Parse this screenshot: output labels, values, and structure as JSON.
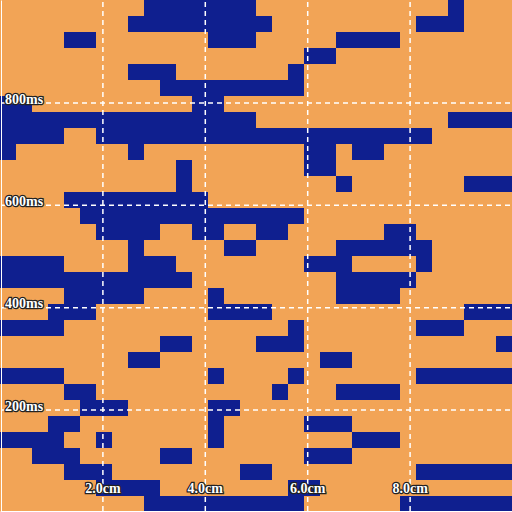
{
  "chart_data": {
    "type": "heatmap",
    "xlim": [
      0,
      10
    ],
    "ylim": [
      0,
      1000
    ],
    "xticks": [
      {
        "value": 2,
        "label": "2.0cm"
      },
      {
        "value": 4,
        "label": "4.0cm"
      },
      {
        "value": 6,
        "label": "6.0cm"
      },
      {
        "value": 8,
        "label": "8.0cm"
      }
    ],
    "yticks": [
      {
        "value": 200,
        "label": "200ms"
      },
      {
        "value": 400,
        "label": "400ms"
      },
      {
        "value": 600,
        "label": "600ms"
      },
      {
        "value": 800,
        "label": "800ms"
      }
    ],
    "grid": true,
    "x": [
      0.15625,
      0.46875,
      0.78125,
      1.09375,
      1.40625,
      1.71875,
      2.03125,
      2.34375,
      2.65625,
      2.96875,
      3.28125,
      3.59375,
      3.90625,
      4.21875,
      4.53125,
      4.84375,
      5.15625,
      5.46875,
      5.78125,
      6.09375,
      6.40625,
      6.71875,
      7.03125,
      7.34375,
      7.65625,
      7.96875,
      8.28125,
      8.59375,
      8.90625,
      9.21875,
      9.53125,
      9.84375
    ],
    "y": [
      15.625,
      46.875,
      78.125,
      109.375,
      140.625,
      171.875,
      203.125,
      234.375,
      265.625,
      296.875,
      328.125,
      359.375,
      390.625,
      421.875,
      453.125,
      484.375,
      515.625,
      546.875,
      578.125,
      609.375,
      640.625,
      671.875,
      703.125,
      734.375,
      765.625,
      796.875,
      828.125,
      859.375,
      890.625,
      921.875,
      953.125,
      984.375
    ],
    "z": [
      [
        1,
        1,
        1,
        1,
        1,
        1,
        1,
        1,
        1,
        0,
        0,
        0,
        0,
        0,
        0,
        0,
        0,
        0,
        0,
        1,
        1,
        1,
        1,
        1,
        1,
        0,
        0,
        0,
        0,
        0,
        0,
        0
      ],
      [
        1,
        1,
        1,
        1,
        1,
        1,
        0,
        0,
        0,
        0,
        1,
        1,
        1,
        1,
        1,
        1,
        1,
        1,
        0,
        0,
        1,
        1,
        1,
        1,
        1,
        1,
        1,
        1,
        1,
        1,
        1,
        1
      ],
      [
        1,
        1,
        1,
        1,
        0,
        0,
        0,
        1,
        1,
        1,
        1,
        1,
        1,
        1,
        1,
        0,
        0,
        1,
        1,
        1,
        1,
        1,
        1,
        1,
        1,
        1,
        0,
        0,
        0,
        0,
        0,
        0
      ],
      [
        1,
        1,
        0,
        0,
        0,
        1,
        1,
        1,
        1,
        1,
        0,
        0,
        1,
        1,
        1,
        1,
        1,
        1,
        1,
        0,
        0,
        0,
        1,
        1,
        1,
        1,
        1,
        1,
        1,
        1,
        1,
        1
      ],
      [
        0,
        0,
        0,
        0,
        1,
        1,
        0,
        1,
        1,
        1,
        1,
        1,
        1,
        0,
        1,
        1,
        1,
        1,
        1,
        1,
        1,
        1,
        0,
        0,
        0,
        1,
        1,
        1,
        1,
        1,
        1,
        1
      ],
      [
        1,
        1,
        1,
        0,
        0,
        1,
        1,
        1,
        1,
        1,
        1,
        1,
        1,
        0,
        1,
        1,
        1,
        1,
        1,
        0,
        0,
        0,
        1,
        1,
        1,
        1,
        1,
        1,
        1,
        1,
        1,
        1
      ],
      [
        1,
        1,
        1,
        1,
        1,
        0,
        0,
        0,
        1,
        1,
        1,
        1,
        1,
        0,
        0,
        1,
        1,
        1,
        1,
        1,
        1,
        1,
        1,
        1,
        1,
        1,
        1,
        1,
        1,
        1,
        1,
        1
      ],
      [
        1,
        1,
        1,
        1,
        0,
        0,
        1,
        1,
        1,
        1,
        1,
        1,
        1,
        1,
        1,
        1,
        1,
        0,
        1,
        1,
        1,
        0,
        0,
        0,
        0,
        1,
        1,
        1,
        1,
        1,
        1,
        1
      ],
      [
        0,
        0,
        0,
        0,
        1,
        1,
        1,
        1,
        1,
        1,
        1,
        1,
        1,
        0,
        1,
        1,
        1,
        1,
        0,
        1,
        1,
        1,
        1,
        1,
        1,
        1,
        0,
        0,
        0,
        0,
        0,
        0
      ],
      [
        1,
        1,
        1,
        1,
        1,
        1,
        1,
        1,
        0,
        0,
        1,
        1,
        1,
        1,
        1,
        1,
        1,
        1,
        1,
        1,
        0,
        0,
        1,
        1,
        1,
        1,
        1,
        1,
        1,
        1,
        1,
        1
      ],
      [
        1,
        1,
        1,
        1,
        1,
        1,
        1,
        1,
        1,
        1,
        0,
        0,
        1,
        1,
        1,
        1,
        0,
        0,
        0,
        1,
        1,
        1,
        1,
        1,
        1,
        1,
        1,
        1,
        1,
        1,
        1,
        0
      ],
      [
        0,
        0,
        0,
        0,
        1,
        1,
        1,
        1,
        1,
        1,
        1,
        1,
        1,
        1,
        1,
        1,
        1,
        1,
        0,
        1,
        1,
        1,
        1,
        1,
        1,
        1,
        0,
        0,
        0,
        1,
        1,
        1
      ],
      [
        1,
        1,
        1,
        0,
        0,
        0,
        1,
        1,
        1,
        1,
        1,
        1,
        1,
        0,
        0,
        0,
        0,
        1,
        1,
        1,
        1,
        1,
        1,
        1,
        1,
        1,
        1,
        1,
        1,
        0,
        0,
        0
      ],
      [
        1,
        1,
        1,
        1,
        0,
        0,
        0,
        0,
        0,
        1,
        1,
        1,
        1,
        0,
        1,
        1,
        1,
        1,
        1,
        1,
        1,
        0,
        0,
        0,
        0,
        1,
        1,
        1,
        1,
        1,
        1,
        1
      ],
      [
        0,
        0,
        0,
        0,
        0,
        0,
        0,
        0,
        0,
        0,
        0,
        0,
        1,
        1,
        1,
        1,
        1,
        1,
        1,
        1,
        1,
        0,
        0,
        0,
        0,
        0,
        1,
        1,
        1,
        1,
        1,
        1
      ],
      [
        0,
        0,
        0,
        0,
        1,
        1,
        1,
        1,
        0,
        0,
        0,
        1,
        1,
        1,
        1,
        1,
        1,
        1,
        1,
        0,
        0,
        0,
        1,
        1,
        1,
        1,
        0,
        1,
        1,
        1,
        1,
        1
      ],
      [
        1,
        1,
        1,
        1,
        1,
        1,
        1,
        1,
        0,
        1,
        1,
        1,
        1,
        1,
        0,
        0,
        1,
        1,
        1,
        1,
        1,
        0,
        0,
        0,
        0,
        0,
        0,
        1,
        1,
        1,
        1,
        1
      ],
      [
        1,
        1,
        1,
        1,
        1,
        1,
        0,
        0,
        0,
        0,
        1,
        1,
        0,
        0,
        1,
        1,
        0,
        0,
        1,
        1,
        1,
        1,
        1,
        1,
        0,
        0,
        1,
        1,
        1,
        1,
        1,
        1
      ],
      [
        1,
        1,
        1,
        1,
        1,
        0,
        0,
        0,
        0,
        0,
        0,
        0,
        0,
        0,
        0,
        0,
        0,
        0,
        0,
        1,
        1,
        1,
        1,
        1,
        1,
        1,
        1,
        1,
        1,
        1,
        1,
        1
      ],
      [
        1,
        1,
        1,
        1,
        0,
        0,
        0,
        0,
        0,
        0,
        0,
        0,
        0,
        1,
        1,
        1,
        1,
        1,
        1,
        1,
        1,
        1,
        1,
        1,
        1,
        1,
        1,
        1,
        1,
        1,
        1,
        1
      ],
      [
        1,
        1,
        1,
        1,
        1,
        1,
        1,
        1,
        1,
        1,
        1,
        0,
        1,
        1,
        1,
        1,
        1,
        1,
        1,
        1,
        1,
        0,
        1,
        1,
        1,
        1,
        1,
        1,
        1,
        0,
        0,
        0
      ],
      [
        1,
        1,
        1,
        1,
        1,
        1,
        1,
        1,
        1,
        1,
        1,
        0,
        1,
        1,
        1,
        1,
        1,
        1,
        1,
        0,
        0,
        1,
        1,
        1,
        1,
        1,
        1,
        1,
        1,
        1,
        1,
        1
      ],
      [
        0,
        1,
        1,
        1,
        1,
        1,
        1,
        1,
        0,
        1,
        1,
        1,
        1,
        1,
        1,
        1,
        1,
        1,
        1,
        0,
        0,
        1,
        0,
        0,
        1,
        1,
        1,
        1,
        1,
        1,
        1,
        1
      ],
      [
        0,
        0,
        0,
        0,
        1,
        1,
        0,
        0,
        0,
        0,
        0,
        0,
        0,
        0,
        0,
        0,
        0,
        0,
        0,
        0,
        0,
        0,
        0,
        0,
        0,
        0,
        0,
        1,
        1,
        1,
        1,
        1
      ],
      [
        0,
        0,
        0,
        0,
        0,
        0,
        0,
        0,
        0,
        0,
        0,
        0,
        0,
        0,
        0,
        0,
        1,
        1,
        1,
        1,
        1,
        1,
        1,
        1,
        1,
        1,
        1,
        1,
        0,
        0,
        0,
        0
      ],
      [
        0,
        0,
        1,
        1,
        1,
        1,
        1,
        1,
        1,
        1,
        1,
        1,
        0,
        0,
        1,
        1,
        1,
        1,
        1,
        1,
        1,
        1,
        1,
        1,
        1,
        1,
        1,
        1,
        1,
        1,
        1,
        1
      ],
      [
        1,
        1,
        1,
        1,
        1,
        1,
        1,
        1,
        1,
        1,
        0,
        0,
        0,
        0,
        0,
        0,
        0,
        0,
        0,
        1,
        1,
        1,
        1,
        1,
        1,
        1,
        1,
        1,
        1,
        1,
        1,
        1
      ],
      [
        1,
        1,
        1,
        1,
        1,
        1,
        1,
        1,
        0,
        0,
        0,
        1,
        1,
        1,
        1,
        1,
        1,
        1,
        0,
        1,
        1,
        1,
        1,
        1,
        1,
        1,
        1,
        1,
        1,
        1,
        1,
        1
      ],
      [
        1,
        1,
        1,
        1,
        1,
        1,
        1,
        1,
        1,
        1,
        1,
        1,
        1,
        1,
        1,
        1,
        1,
        1,
        1,
        0,
        0,
        1,
        1,
        1,
        1,
        1,
        1,
        1,
        1,
        1,
        1,
        1
      ],
      [
        1,
        1,
        1,
        1,
        0,
        0,
        1,
        1,
        1,
        1,
        1,
        1,
        1,
        0,
        0,
        0,
        1,
        1,
        1,
        1,
        1,
        0,
        0,
        0,
        0,
        1,
        1,
        1,
        1,
        1,
        1,
        1
      ],
      [
        1,
        1,
        1,
        1,
        1,
        1,
        1,
        1,
        0,
        0,
        0,
        0,
        0,
        0,
        0,
        0,
        0,
        1,
        1,
        1,
        1,
        1,
        1,
        1,
        1,
        1,
        0,
        0,
        0,
        1,
        1,
        1
      ],
      [
        1,
        1,
        1,
        1,
        1,
        1,
        1,
        1,
        1,
        0,
        0,
        0,
        0,
        0,
        0,
        0,
        1,
        1,
        1,
        1,
        1,
        1,
        1,
        1,
        1,
        1,
        1,
        1,
        0,
        1,
        1,
        1
      ]
    ]
  }
}
